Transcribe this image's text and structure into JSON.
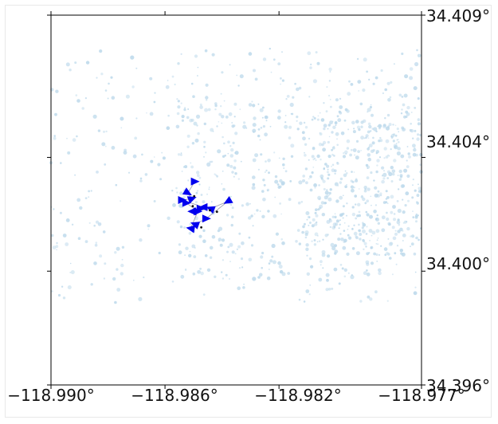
{
  "map": {
    "x_tick_labels": [
      "−118.990°",
      "−118.986°",
      "−118.982°",
      "−118.977°"
    ],
    "y_tick_labels": [
      "34.409°",
      "34.404°",
      "34.400°",
      "34.396°"
    ],
    "x_ticks": [
      -118.99,
      -118.986,
      -118.982,
      -118.977
    ],
    "y_ticks": [
      34.409,
      34.404,
      34.4,
      34.396
    ],
    "xlim": [
      -118.99,
      -118.977
    ],
    "ylim": [
      34.396,
      34.409
    ],
    "colors": {
      "background_points": "#b9d7ea",
      "markers": "#0000ee",
      "track_line": "#9999aa",
      "axes": "#000000"
    },
    "marker_icon": "triangle-arrow-icon"
  },
  "chart_data": {
    "type": "scatter",
    "series": [
      {
        "values_description_none": "",
        "points": [
          [
            -118.98495,
            34.40315
          ],
          [
            -118.9852,
            34.40275
          ],
          [
            -118.98505,
            34.40255
          ],
          [
            -118.9854,
            34.4025
          ],
          [
            -118.98465,
            34.40225
          ],
          [
            -118.98475,
            34.4022
          ],
          [
            -118.98505,
            34.4021
          ],
          [
            -118.9844,
            34.4022
          ],
          [
            -118.9838,
            34.40245
          ],
          [
            -118.98455,
            34.40185
          ],
          [
            -118.98495,
            34.40165
          ],
          [
            -118.9851,
            34.4015
          ],
          [
            -118.98485,
            34.4021
          ],
          [
            -118.98525,
            34.4024
          ]
        ]
      }
    ],
    "xlim": [
      -118.99,
      -118.977
    ],
    "ylim": [
      34.396,
      34.409
    ]
  }
}
